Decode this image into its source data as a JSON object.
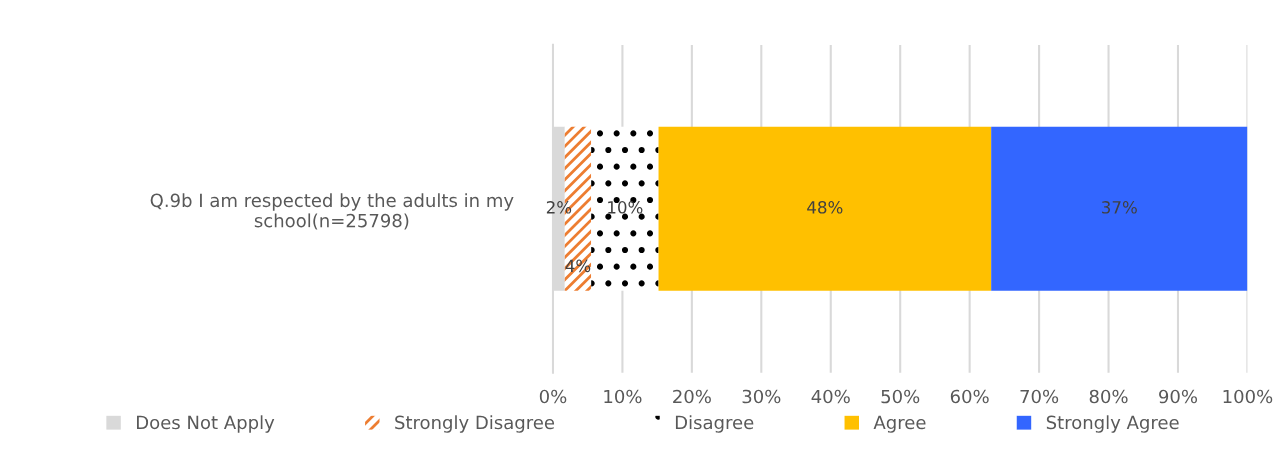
{
  "chart_data": {
    "type": "bar",
    "orientation": "horizontal",
    "stacked": true,
    "categories": [
      "Q.9b I am respected by the adults in my\nschool(n=25798)"
    ],
    "series": [
      {
        "name": "Does Not Apply",
        "color": "#d9d9d9",
        "values": [
          1.7
        ],
        "value_labels": [
          "2%"
        ]
      },
      {
        "name": "Strongly Disagree",
        "color": "#ed7d31",
        "values": [
          3.8
        ],
        "value_labels": [
          "4%"
        ]
      },
      {
        "name": "Disagree",
        "color": "#000000",
        "values": [
          9.7
        ],
        "value_labels": [
          "10%"
        ]
      },
      {
        "name": "Agree",
        "color": "#ffc000",
        "values": [
          47.9
        ],
        "value_labels": [
          "48%"
        ]
      },
      {
        "name": "Strongly Agree",
        "color": "#3366ff",
        "values": [
          36.9
        ],
        "value_labels": [
          "37%"
        ]
      }
    ],
    "xlim": [
      0,
      100
    ],
    "xticks": [
      {
        "value": 0,
        "label": "0%"
      },
      {
        "value": 10,
        "label": "10%"
      },
      {
        "value": 20,
        "label": "20%"
      },
      {
        "value": 30,
        "label": "30%"
      },
      {
        "value": 40,
        "label": "40%"
      },
      {
        "value": 50,
        "label": "50%"
      },
      {
        "value": 60,
        "label": "60%"
      },
      {
        "value": 70,
        "label": "70%"
      },
      {
        "value": 80,
        "label": "80%"
      },
      {
        "value": 90,
        "label": "90%"
      },
      {
        "value": 100,
        "label": "100%"
      }
    ],
    "grid": "x",
    "legend": "bottom"
  }
}
